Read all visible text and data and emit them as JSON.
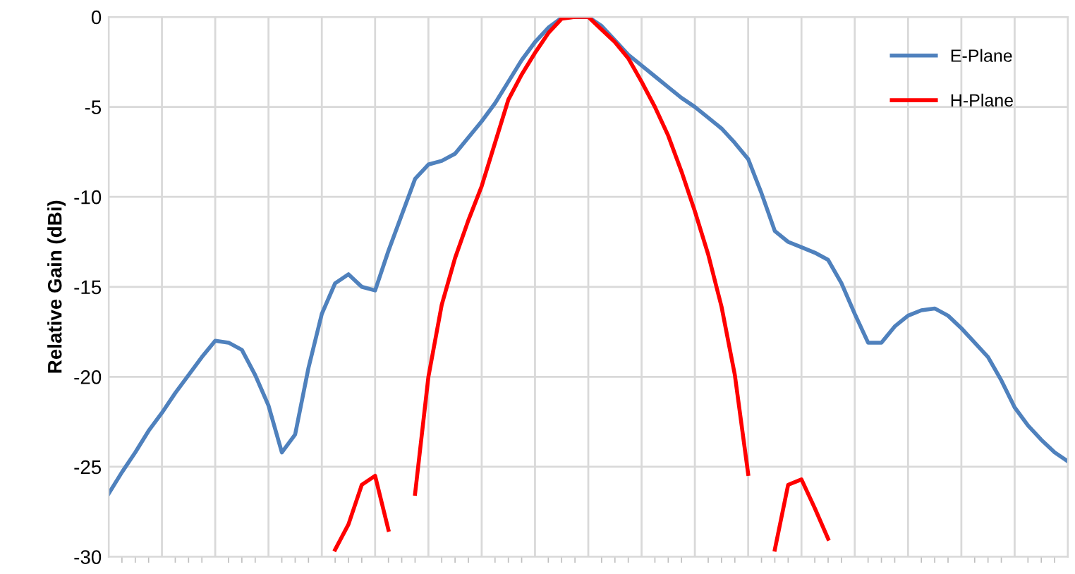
{
  "chart_data": {
    "type": "line",
    "ylabel": "Relative Gain (dBi)",
    "categories": [
      null,
      null,
      null,
      null,
      null,
      null,
      null,
      null,
      null,
      null,
      null,
      null,
      null,
      null,
      null,
      null,
      null,
      null,
      null,
      null,
      null,
      null,
      null,
      null,
      null,
      null,
      null,
      null,
      null,
      null,
      null,
      null,
      null,
      null,
      null,
      null,
      null,
      null,
      null,
      null,
      null,
      null,
      null,
      null,
      null,
      null,
      null,
      null,
      null,
      null,
      null,
      null,
      null,
      null,
      null,
      null,
      null,
      null,
      null,
      null,
      null,
      null,
      null,
      null,
      null,
      null,
      null,
      null,
      null,
      null,
      null,
      null,
      null
    ],
    "series": [
      {
        "name": "E-Plane",
        "color": "#4f81bd",
        "values": [
          -26.5,
          -25.3,
          -24.2,
          -23.0,
          -22.0,
          -20.9,
          -19.9,
          -18.9,
          -18.0,
          -18.1,
          -18.5,
          -19.9,
          -21.6,
          -24.2,
          -23.2,
          -19.5,
          -16.5,
          -14.8,
          -14.3,
          -15.0,
          -15.2,
          -13.0,
          -11.0,
          -9.0,
          -8.2,
          -8.0,
          -7.6,
          -6.7,
          -5.8,
          -4.8,
          -3.6,
          -2.4,
          -1.4,
          -0.6,
          -0.05,
          0,
          0,
          -0.5,
          -1.3,
          -2.1,
          -2.7,
          -3.3,
          -3.9,
          -4.5,
          -5.0,
          -5.6,
          -6.2,
          -7.0,
          -7.9,
          -9.8,
          -11.9,
          -12.5,
          -12.8,
          -13.1,
          -13.5,
          -14.8,
          -16.5,
          -18.1,
          -18.1,
          -17.2,
          -16.6,
          -16.3,
          -16.2,
          -16.6,
          -17.3,
          -18.1,
          -18.9,
          -20.2,
          -21.7,
          -22.7,
          -23.5,
          -24.2,
          -24.7
        ]
      },
      {
        "name": "H-Plane",
        "color": "#ff0000",
        "values": [
          null,
          null,
          null,
          null,
          null,
          null,
          null,
          null,
          null,
          null,
          null,
          null,
          null,
          null,
          null,
          null,
          null,
          -29.6,
          -28.2,
          -26.0,
          -25.5,
          -28.5,
          null,
          -26.5,
          -20.0,
          -16.0,
          -13.4,
          -11.3,
          -9.4,
          -7.0,
          -4.6,
          -3.2,
          -2.0,
          -0.9,
          -0.1,
          0,
          0,
          -0.7,
          -1.4,
          -2.3,
          -3.6,
          -5.0,
          -6.6,
          -8.6,
          -10.8,
          -13.2,
          -16.1,
          -19.9,
          -25.4,
          null,
          -29.6,
          -26.0,
          -25.7,
          -27.3,
          -29.0,
          null,
          null,
          null,
          null,
          null,
          null,
          null,
          null,
          null,
          null,
          null,
          null,
          null,
          null,
          null,
          null,
          null,
          null
        ]
      }
    ],
    "ylim": [
      -30,
      0
    ],
    "yticks": [
      -30,
      -25,
      -20,
      -15,
      -10,
      -5,
      0
    ],
    "grid": true,
    "legend": "top right",
    "line_style": "solid",
    "marker": "none"
  }
}
